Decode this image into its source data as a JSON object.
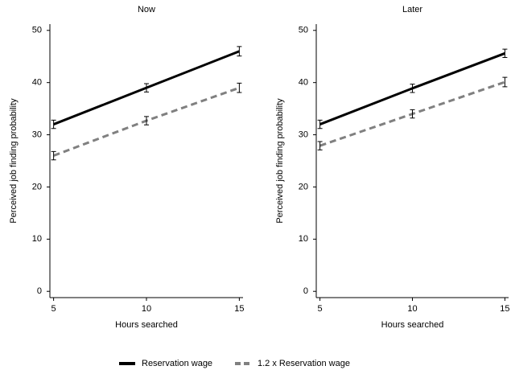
{
  "chart_data": [
    {
      "type": "line",
      "title": "Now",
      "xlabel": "Hours searched",
      "ylabel": "Perceived job finding probability",
      "x": [
        5,
        10,
        15
      ],
      "xlim": [
        4.8,
        15.2
      ],
      "xticks": [
        5,
        10,
        15
      ],
      "ylim": [
        -1.2,
        51.2
      ],
      "yticks": [
        0,
        10,
        20,
        30,
        40,
        50
      ],
      "series": [
        {
          "name": "Reservation wage",
          "color": "#000000",
          "dashed": false,
          "values": [
            32,
            39,
            46
          ],
          "errors": [
            0.8,
            0.8,
            0.9
          ]
        },
        {
          "name": "1.2 x Reservation wage",
          "color": "#808080",
          "dashed": true,
          "values": [
            26,
            32.7,
            39
          ],
          "errors": [
            0.8,
            0.8,
            0.9
          ]
        }
      ]
    },
    {
      "type": "line",
      "title": "Later",
      "xlabel": "Hours searched",
      "ylabel": "Perceived job finding probability",
      "x": [
        5,
        10,
        15
      ],
      "xlim": [
        4.8,
        15.2
      ],
      "xticks": [
        5,
        10,
        15
      ],
      "ylim": [
        -1.2,
        51.2
      ],
      "yticks": [
        0,
        10,
        20,
        30,
        40,
        50
      ],
      "series": [
        {
          "color": "#000000",
          "dashed": false,
          "values": [
            32,
            38.9,
            45.6
          ],
          "errors": [
            0.8,
            0.8,
            0.8
          ]
        },
        {
          "color": "#808080",
          "dashed": true,
          "values": [
            27.9,
            34,
            40.1
          ],
          "errors": [
            0.8,
            0.8,
            0.9
          ]
        }
      ]
    }
  ]
}
